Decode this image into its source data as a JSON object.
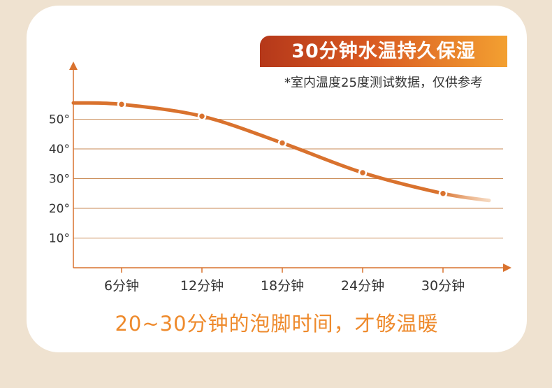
{
  "header": {
    "title": "30分钟水温持久保湿",
    "footnote": "*室内温度25度测试数据，仅供参考"
  },
  "caption": "20~30分钟的泡脚时间，才够温暖",
  "colors": {
    "accent": "#d9722e",
    "grid": "#c98a55",
    "banner_start": "#b5381a",
    "banner_end": "#f3a031",
    "caption": "#ee8a2c",
    "background": "#efe2d0"
  },
  "chart_data": {
    "type": "line",
    "title": "30分钟水温持久保湿",
    "xlabel": "",
    "ylabel": "",
    "categories": [
      "6分钟",
      "12分钟",
      "18分钟",
      "24分钟",
      "30分钟"
    ],
    "x": [
      6,
      12,
      18,
      24,
      30
    ],
    "series": [
      {
        "values": [
          55,
          51,
          42,
          32,
          25
        ]
      }
    ],
    "yticks": [
      10,
      20,
      30,
      40,
      50
    ],
    "ytick_labels": [
      "10°",
      "20°",
      "30°",
      "40°",
      "50°"
    ],
    "ylim": [
      0,
      70
    ],
    "grid": true,
    "legend": "none"
  }
}
